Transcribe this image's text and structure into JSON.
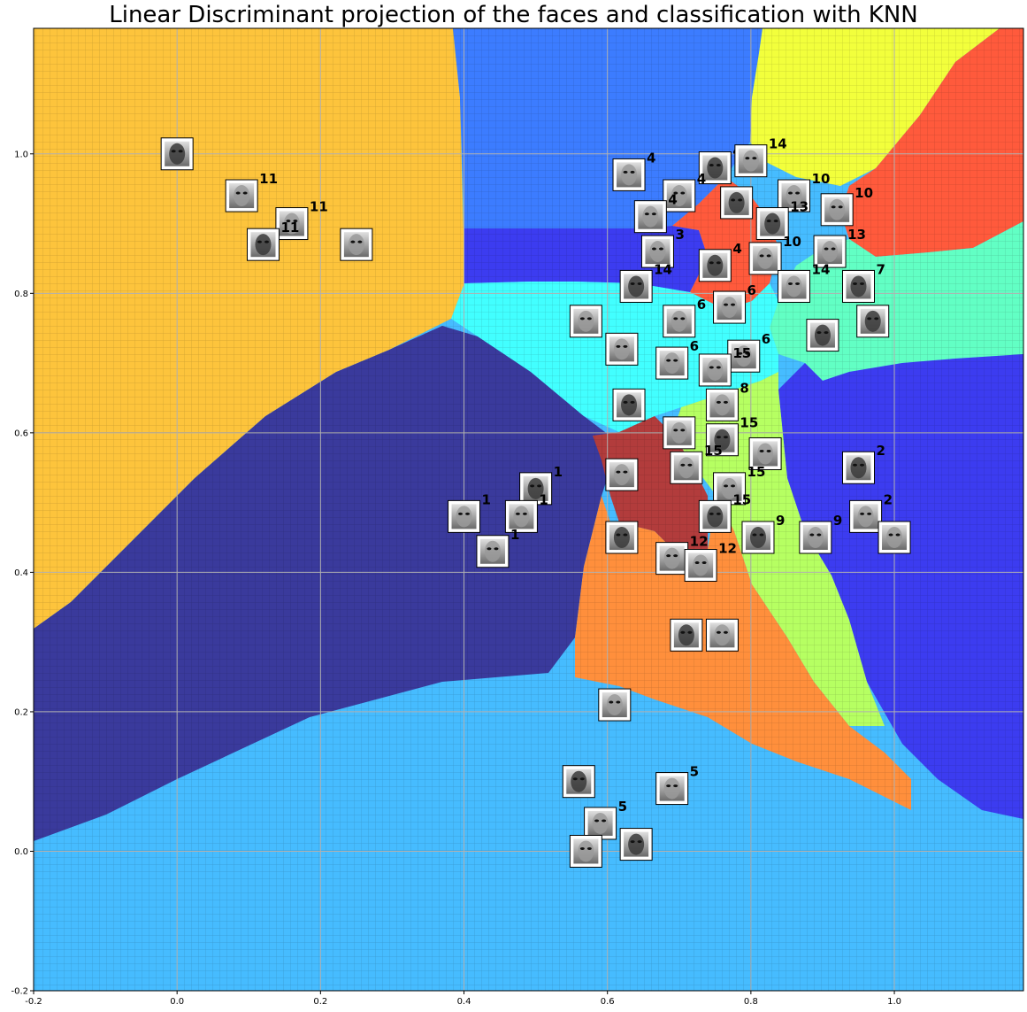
{
  "chart_data": {
    "type": "scatter",
    "title": "Linear Discriminant projection of the faces and classification with KNN",
    "xlabel": "",
    "ylabel": "",
    "xlim": [
      -0.2,
      1.18
    ],
    "ylim": [
      -0.2,
      1.18
    ],
    "xticks": [
      "-0.2",
      "0.0",
      "0.2",
      "0.4",
      "0.6",
      "0.8",
      "1.0"
    ],
    "yticks": [
      "-0.2",
      "0.0",
      "0.2",
      "0.4",
      "0.6",
      "0.8",
      "1.0"
    ],
    "grid": true,
    "background": "KNN decision regions",
    "region_colors": {
      "orange_yellow": "#fdc43c",
      "dark_navy": "#3a3a9c",
      "light_blue": "#46bcff",
      "blue": "#3c7cff",
      "yellow": "#f2ff3c",
      "red": "#ff5a3c",
      "aquamarine": "#62ffc4",
      "cyan": "#42ffff",
      "mid_blue": "#3c3cf0",
      "light_green": "#b6ff62",
      "dark_red": "#b23c3c",
      "orange": "#ff8f3c"
    },
    "points": [
      {
        "x": 0.0,
        "y": 1.0,
        "label": ""
      },
      {
        "x": 0.09,
        "y": 0.94,
        "label": "11"
      },
      {
        "x": 0.16,
        "y": 0.9,
        "label": "11"
      },
      {
        "x": 0.12,
        "y": 0.87,
        "label": "11"
      },
      {
        "x": 0.25,
        "y": 0.87,
        "label": ""
      },
      {
        "x": 0.63,
        "y": 0.97,
        "label": "4"
      },
      {
        "x": 0.75,
        "y": 0.98,
        "label": "4"
      },
      {
        "x": 0.8,
        "y": 0.99,
        "label": "14"
      },
      {
        "x": 0.7,
        "y": 0.94,
        "label": "4"
      },
      {
        "x": 0.78,
        "y": 0.93,
        "label": ""
      },
      {
        "x": 0.86,
        "y": 0.94,
        "label": "10"
      },
      {
        "x": 0.66,
        "y": 0.91,
        "label": "4"
      },
      {
        "x": 0.83,
        "y": 0.9,
        "label": "13"
      },
      {
        "x": 0.92,
        "y": 0.92,
        "label": "10"
      },
      {
        "x": 0.67,
        "y": 0.86,
        "label": "3"
      },
      {
        "x": 0.75,
        "y": 0.84,
        "label": "4"
      },
      {
        "x": 0.82,
        "y": 0.85,
        "label": "10"
      },
      {
        "x": 0.91,
        "y": 0.86,
        "label": "13"
      },
      {
        "x": 0.64,
        "y": 0.81,
        "label": "14"
      },
      {
        "x": 0.77,
        "y": 0.78,
        "label": "6"
      },
      {
        "x": 0.86,
        "y": 0.81,
        "label": "14"
      },
      {
        "x": 0.95,
        "y": 0.81,
        "label": "7"
      },
      {
        "x": 0.57,
        "y": 0.76,
        "label": ""
      },
      {
        "x": 0.7,
        "y": 0.76,
        "label": "6"
      },
      {
        "x": 0.97,
        "y": 0.76,
        "label": ""
      },
      {
        "x": 0.62,
        "y": 0.72,
        "label": ""
      },
      {
        "x": 0.79,
        "y": 0.71,
        "label": "6"
      },
      {
        "x": 0.9,
        "y": 0.74,
        "label": ""
      },
      {
        "x": 0.69,
        "y": 0.7,
        "label": "6"
      },
      {
        "x": 0.75,
        "y": 0.69,
        "label": "15"
      },
      {
        "x": 0.63,
        "y": 0.64,
        "label": ""
      },
      {
        "x": 0.76,
        "y": 0.64,
        "label": "8"
      },
      {
        "x": 0.7,
        "y": 0.6,
        "label": ""
      },
      {
        "x": 0.76,
        "y": 0.59,
        "label": "15"
      },
      {
        "x": 0.82,
        "y": 0.57,
        "label": ""
      },
      {
        "x": 0.71,
        "y": 0.55,
        "label": "15"
      },
      {
        "x": 0.95,
        "y": 0.55,
        "label": "2"
      },
      {
        "x": 0.62,
        "y": 0.54,
        "label": ""
      },
      {
        "x": 0.77,
        "y": 0.52,
        "label": "15"
      },
      {
        "x": 0.5,
        "y": 0.52,
        "label": "1"
      },
      {
        "x": 0.4,
        "y": 0.48,
        "label": "1"
      },
      {
        "x": 0.48,
        "y": 0.48,
        "label": "1"
      },
      {
        "x": 0.75,
        "y": 0.48,
        "label": "15"
      },
      {
        "x": 0.96,
        "y": 0.48,
        "label": "2"
      },
      {
        "x": 0.89,
        "y": 0.45,
        "label": "9"
      },
      {
        "x": 0.81,
        "y": 0.45,
        "label": "9"
      },
      {
        "x": 1.0,
        "y": 0.45,
        "label": ""
      },
      {
        "x": 0.44,
        "y": 0.43,
        "label": "1"
      },
      {
        "x": 0.62,
        "y": 0.45,
        "label": ""
      },
      {
        "x": 0.69,
        "y": 0.42,
        "label": "12"
      },
      {
        "x": 0.73,
        "y": 0.41,
        "label": "12"
      },
      {
        "x": 0.71,
        "y": 0.31,
        "label": ""
      },
      {
        "x": 0.76,
        "y": 0.31,
        "label": ""
      },
      {
        "x": 0.61,
        "y": 0.21,
        "label": ""
      },
      {
        "x": 0.56,
        "y": 0.1,
        "label": ""
      },
      {
        "x": 0.69,
        "y": 0.09,
        "label": "5"
      },
      {
        "x": 0.59,
        "y": 0.04,
        "label": "5"
      },
      {
        "x": 0.64,
        "y": 0.01,
        "label": ""
      },
      {
        "x": 0.57,
        "y": 0.0,
        "label": ""
      }
    ]
  }
}
